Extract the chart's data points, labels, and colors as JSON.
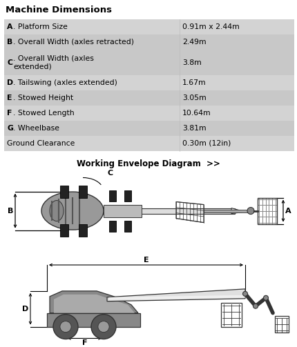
{
  "title": "Machine Dimensions",
  "table_rows": [
    [
      "A",
      ". Platform Size",
      "0.91m x 2.44m"
    ],
    [
      "B",
      ". Overall Width (axles retracted)",
      "2.49m"
    ],
    [
      "C",
      ". Overall Width (axles\nextended)",
      "3.8m"
    ],
    [
      "D",
      ". Tailswing (axles extended)",
      "1.67m"
    ],
    [
      "E",
      ". Stowed Height",
      "3.05m"
    ],
    [
      "F",
      ". Stowed Length",
      "10.64m"
    ],
    [
      "G",
      ". Wheelbase",
      "3.81m"
    ],
    [
      "",
      "Ground Clearance",
      "0.30m (12in)"
    ]
  ],
  "row_colors": [
    "#d3d3d3",
    "#c8c8c8",
    "#c8c8c8",
    "#d3d3d3",
    "#c8c8c8",
    "#d3d3d3",
    "#c8c8c8",
    "#d3d3d3"
  ],
  "working_envelope_text": "Working Envelope Diagram  >>",
  "bg_color": "#ffffff",
  "dk": "#333333",
  "md": "#666666",
  "lt": "#aaaaaa",
  "vlt": "#dddddd"
}
